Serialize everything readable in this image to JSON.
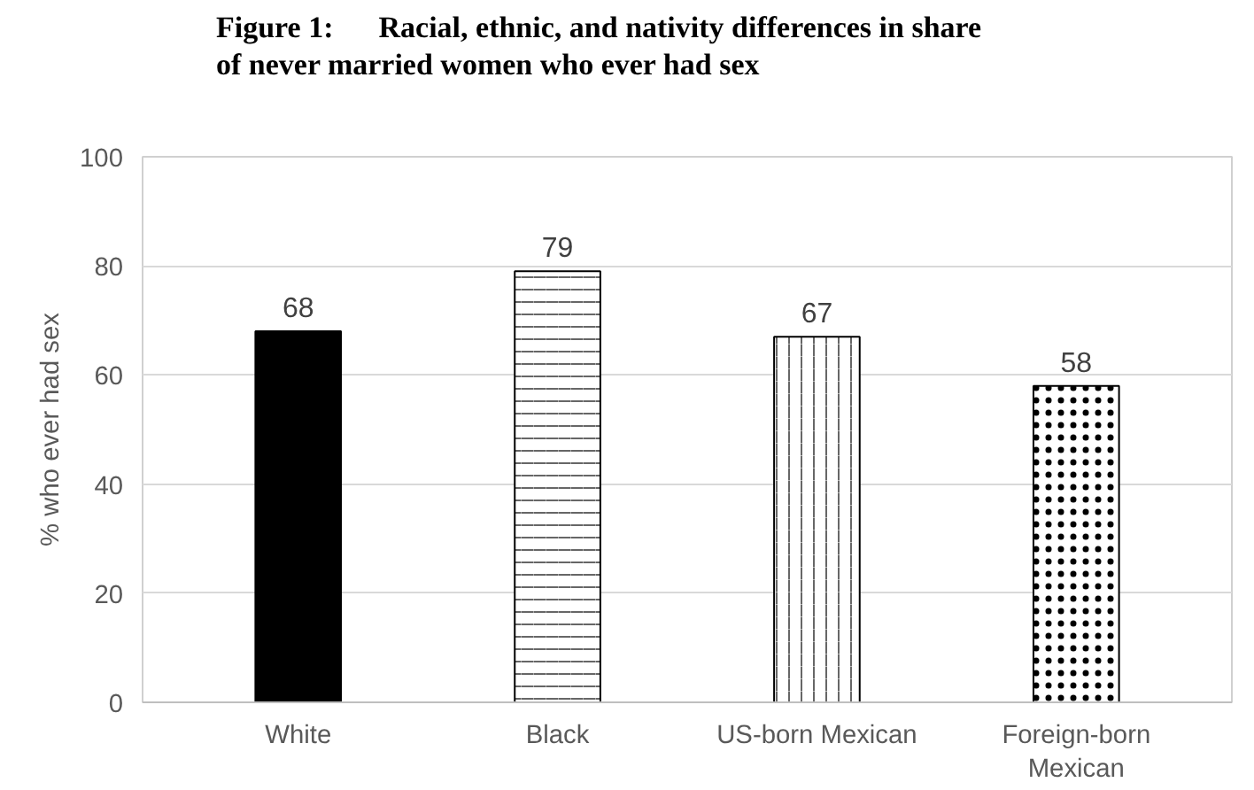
{
  "chart_data": {
    "type": "bar",
    "title": "Figure 1:      Racial, ethnic, and nativity differences in share of never married women who ever had sex",
    "ylabel": "% who ever had sex",
    "categories": [
      "White",
      "Black",
      "US-born Mexican",
      "Foreign-born Mexican"
    ],
    "values": [
      68,
      79,
      67,
      58
    ],
    "colors": [
      "#000000",
      "#000000",
      "#000000",
      "#000000"
    ],
    "ylim": [
      0,
      100
    ],
    "yticks": [
      0,
      20,
      40,
      60,
      80,
      100
    ],
    "grid": "y",
    "data_labels": true
  }
}
